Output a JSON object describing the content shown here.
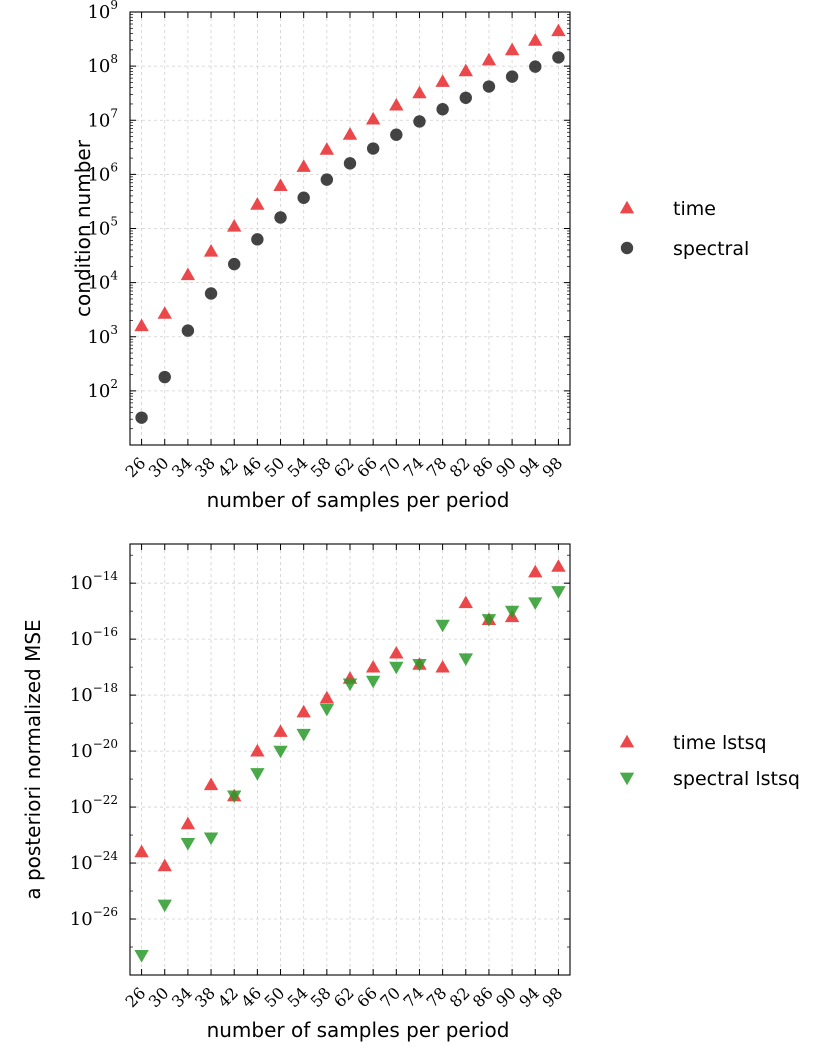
{
  "chart_data": [
    {
      "type": "scatter",
      "title": "",
      "xlabel": "number of samples per period",
      "ylabel": "condition number",
      "yscale": "log",
      "ylim_exp": [
        1,
        9
      ],
      "ytick_exps": [
        2,
        3,
        4,
        5,
        6,
        7,
        8,
        9
      ],
      "categories": [
        "26",
        "30",
        "34",
        "38",
        "42",
        "46",
        "50",
        "54",
        "58",
        "62",
        "66",
        "70",
        "74",
        "78",
        "82",
        "86",
        "90",
        "94",
        "98"
      ],
      "legend_position": "right",
      "grid": true,
      "series": [
        {
          "name": "time",
          "marker": "triangle-up",
          "color": "#e8282b",
          "values": [
            1600,
            2700,
            14000,
            38000,
            110000,
            280000,
            620000,
            1400000,
            2900000,
            5500000,
            10500000,
            19000000,
            32000000,
            52000000,
            82000000,
            130000000,
            200000000,
            300000000,
            450000000
          ]
        },
        {
          "name": "spectral",
          "marker": "circle",
          "color": "#222222",
          "values": [
            32,
            180,
            1300,
            6300,
            22000,
            63000,
            160000,
            370000,
            800000,
            1600000,
            3000000,
            5400000,
            9500000,
            16000000,
            26000000,
            42000000,
            64000000,
            98000000,
            145000000
          ]
        }
      ]
    },
    {
      "type": "scatter",
      "title": "",
      "xlabel": "number of samples per period",
      "ylabel": "a posteriori normalized MSE",
      "yscale": "log",
      "ylim_exp": [
        -28,
        -12.6
      ],
      "ytick_exps": [
        -26,
        -24,
        -22,
        -20,
        -18,
        -16,
        -14
      ],
      "categories": [
        "26",
        "30",
        "34",
        "38",
        "42",
        "46",
        "50",
        "54",
        "58",
        "62",
        "66",
        "70",
        "74",
        "78",
        "82",
        "86",
        "90",
        "94",
        "98"
      ],
      "legend_position": "right",
      "grid": true,
      "series": [
        {
          "name": "time lstsq",
          "marker": "triangle-up",
          "color": "#e8282b",
          "values_exp": [
            -23.6,
            -24.1,
            -22.6,
            -21.2,
            -21.6,
            -20.0,
            -19.3,
            -18.6,
            -18.1,
            -17.4,
            -17.0,
            -16.5,
            -16.9,
            -17.0,
            -14.7,
            -15.3,
            -15.2,
            -13.6,
            -13.4
          ]
        },
        {
          "name": "spectral lstsq",
          "marker": "triangle-down",
          "color": "#2a9a2a",
          "values_exp": [
            -27.3,
            -25.5,
            -23.3,
            -23.1,
            -21.6,
            -20.8,
            -20.0,
            -19.4,
            -18.5,
            -17.6,
            -17.5,
            -17.0,
            -16.9,
            -15.5,
            -16.7,
            -15.3,
            -15.0,
            -14.7,
            -14.3
          ]
        }
      ]
    }
  ]
}
